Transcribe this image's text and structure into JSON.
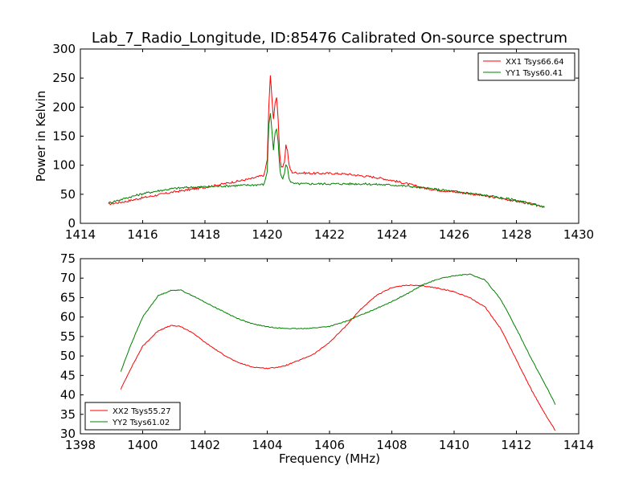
{
  "figure": {
    "title": "Lab_7_Radio_Longitude, ID:85476 Calibrated On-source spectrum"
  },
  "chart_data": [
    {
      "type": "line",
      "title": "Lab_7_Radio_Longitude, ID:85476 Calibrated On-source spectrum",
      "xlabel": "",
      "ylabel": "Power in Kelvin",
      "xlim": [
        1414,
        1430
      ],
      "ylim": [
        0,
        300
      ],
      "xticks": [
        1414,
        1416,
        1418,
        1420,
        1422,
        1424,
        1426,
        1428,
        1430
      ],
      "yticks": [
        0,
        50,
        100,
        150,
        200,
        250,
        300
      ],
      "legend_position": "top-right",
      "grid": false,
      "series": [
        {
          "name": "XX1 Tsys66.64",
          "color": "#ff0000",
          "x": [
            1414.9,
            1415.5,
            1416,
            1416.5,
            1417,
            1417.5,
            1418,
            1418.5,
            1419,
            1419.5,
            1419.9,
            1420.0,
            1420.05,
            1420.1,
            1420.15,
            1420.2,
            1420.25,
            1420.3,
            1420.35,
            1420.4,
            1420.45,
            1420.5,
            1420.55,
            1420.6,
            1420.65,
            1420.7,
            1420.75,
            1420.8,
            1420.9,
            1421.0,
            1421.5,
            1422,
            1422.5,
            1423,
            1423.5,
            1424,
            1424.5,
            1425,
            1425.5,
            1426,
            1426.5,
            1427,
            1427.5,
            1428,
            1428.5,
            1428.9
          ],
          "y": [
            33,
            38,
            44,
            49,
            54,
            58,
            62,
            67,
            72,
            77,
            83,
            110,
            200,
            255,
            215,
            180,
            205,
            218,
            180,
            120,
            95,
            97,
            105,
            135,
            125,
            100,
            92,
            88,
            87,
            87,
            86,
            86,
            85,
            82,
            79,
            74,
            68,
            61,
            57,
            54,
            51,
            47,
            43,
            38,
            33,
            29
          ]
        },
        {
          "name": "YY1 Tsys60.41",
          "color": "#008000",
          "x": [
            1414.9,
            1415.5,
            1416,
            1416.5,
            1417,
            1417.5,
            1418,
            1418.5,
            1419,
            1419.5,
            1419.9,
            1420.0,
            1420.05,
            1420.1,
            1420.15,
            1420.2,
            1420.25,
            1420.3,
            1420.35,
            1420.4,
            1420.45,
            1420.5,
            1420.55,
            1420.6,
            1420.65,
            1420.7,
            1420.75,
            1420.8,
            1420.9,
            1421.0,
            1421.5,
            1422,
            1422.5,
            1423,
            1423.5,
            1424,
            1424.5,
            1425,
            1425.5,
            1426,
            1426.5,
            1427,
            1427.5,
            1428,
            1428.5,
            1428.9
          ],
          "y": [
            35,
            44,
            51,
            56,
            60,
            62,
            63,
            64,
            65,
            66,
            67,
            90,
            170,
            190,
            160,
            125,
            155,
            162,
            140,
            95,
            80,
            78,
            85,
            102,
            95,
            78,
            72,
            69,
            68,
            68,
            68,
            68,
            68,
            68,
            67,
            66,
            64,
            61,
            58,
            55,
            52,
            48,
            44,
            40,
            33,
            27
          ]
        }
      ]
    },
    {
      "type": "line",
      "title": "",
      "xlabel": "Frequency (MHz)",
      "ylabel": "",
      "xlim": [
        1398,
        1414
      ],
      "ylim": [
        30,
        75
      ],
      "xticks": [
        1398,
        1400,
        1402,
        1404,
        1406,
        1408,
        1410,
        1412,
        1414
      ],
      "yticks": [
        30,
        35,
        40,
        45,
        50,
        55,
        60,
        65,
        70,
        75
      ],
      "legend_position": "bottom-left",
      "grid": false,
      "series": [
        {
          "name": "XX2 Tsys55.27",
          "color": "#ff0000",
          "x": [
            1399.3,
            1399.6,
            1400.0,
            1400.5,
            1400.9,
            1401.2,
            1401.6,
            1402.0,
            1402.5,
            1403.0,
            1403.5,
            1404.0,
            1404.5,
            1405.0,
            1405.5,
            1406.0,
            1406.5,
            1407.0,
            1407.5,
            1408.0,
            1408.5,
            1409.0,
            1409.5,
            1410.0,
            1410.5,
            1411.0,
            1411.5,
            1412.0,
            1412.5,
            1413.0,
            1413.25
          ],
          "y": [
            41.5,
            46.5,
            52.5,
            56.5,
            57.8,
            57.6,
            56.0,
            53.5,
            50.8,
            48.5,
            47.2,
            46.8,
            47.3,
            48.8,
            50.5,
            53.5,
            57.5,
            62.0,
            65.5,
            67.6,
            68.2,
            68.0,
            67.4,
            66.5,
            65.0,
            62.5,
            57.0,
            49.0,
            41.0,
            34.0,
            30.8
          ]
        },
        {
          "name": "YY2 Tsys61.02",
          "color": "#008000",
          "x": [
            1399.3,
            1399.6,
            1400.0,
            1400.5,
            1400.9,
            1401.2,
            1401.6,
            1402.0,
            1402.5,
            1403.0,
            1403.5,
            1404.0,
            1404.5,
            1405.0,
            1405.5,
            1406.0,
            1406.5,
            1407.0,
            1407.5,
            1408.0,
            1408.5,
            1409.0,
            1409.5,
            1410.0,
            1410.5,
            1411.0,
            1411.5,
            1412.0,
            1412.5,
            1413.0,
            1413.25
          ],
          "y": [
            46.0,
            52.5,
            60.0,
            65.5,
            66.8,
            67.0,
            65.5,
            63.8,
            61.8,
            59.8,
            58.3,
            57.5,
            57.1,
            57.0,
            57.2,
            57.6,
            58.8,
            60.5,
            62.2,
            64.0,
            66.0,
            68.3,
            69.8,
            70.6,
            71.0,
            69.5,
            64.5,
            57.0,
            49.0,
            41.5,
            37.5
          ]
        }
      ]
    }
  ]
}
